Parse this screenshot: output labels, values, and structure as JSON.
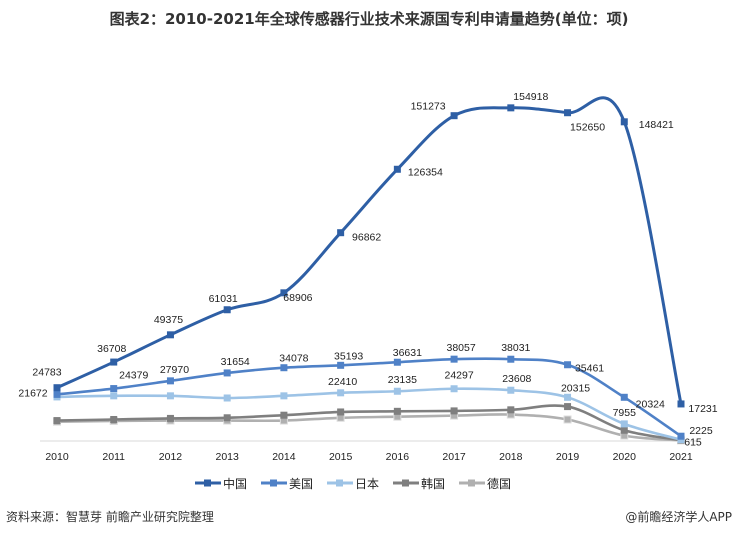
{
  "title": "图表2：2010-2021年全球传感器行业技术来源国专利申请量趋势(单位：项)",
  "source": "资料来源：智慧芽 前瞻产业研究院整理",
  "credit": "@前瞻经济学人APP",
  "chart_data": {
    "type": "line",
    "title": "图表2：2010-2021年全球传感器行业技术来源国专利申请量趋势(单位：项)",
    "x": [
      "2010",
      "2011",
      "2012",
      "2013",
      "2014",
      "2015",
      "2016",
      "2017",
      "2018",
      "2019",
      "2020",
      "2021"
    ],
    "ylim": [
      0,
      160000
    ],
    "grid": false,
    "legend": "bottom",
    "series": [
      {
        "name": "中国",
        "color": "#2e5fa5",
        "values": [
          24783,
          36708,
          49375,
          61031,
          68906,
          96862,
          126354,
          151273,
          154918,
          152650,
          148421,
          17231
        ],
        "labels": [
          "24783",
          "36708",
          "49375",
          "61031",
          "68906",
          "96862",
          "126354",
          "151273",
          "154918",
          "152650",
          "148421",
          "17231"
        ]
      },
      {
        "name": "美国",
        "color": "#4f81c7",
        "values": [
          21672,
          24379,
          27970,
          31654,
          34078,
          35193,
          36631,
          38057,
          38031,
          35461,
          20324,
          2225
        ],
        "labels": [
          "21672",
          "24379",
          "27970",
          "31654",
          "34078",
          "35193",
          "36631",
          "38057",
          "38031",
          "35461",
          "20324",
          "2225"
        ]
      },
      {
        "name": "日本",
        "color": "#9dc3e6",
        "values": [
          20500,
          21000,
          21000,
          20000,
          21000,
          22410,
          23135,
          24297,
          23608,
          20315,
          7955,
          615
        ],
        "labels": [
          "",
          "",
          "",
          "",
          "",
          "22410",
          "23135",
          "24297",
          "23608",
          "20315",
          "7955",
          "615"
        ]
      },
      {
        "name": "韩国",
        "color": "#7f7f7f",
        "values": [
          9500,
          10000,
          10500,
          10800,
          12000,
          13500,
          13800,
          14000,
          14500,
          16000,
          5000,
          400
        ],
        "labels": [
          "",
          "",
          "",
          "",
          "",
          "",
          "",
          "",
          "",
          "",
          "",
          ""
        ]
      },
      {
        "name": "德国",
        "color": "#b0b0b0",
        "values": [
          9000,
          9300,
          9500,
          9500,
          9500,
          10800,
          11300,
          11800,
          12300,
          10000,
          2500,
          300
        ],
        "labels": [
          "",
          "",
          "",
          "",
          "",
          "",
          "",
          "",
          "",
          "",
          "",
          ""
        ]
      }
    ]
  }
}
